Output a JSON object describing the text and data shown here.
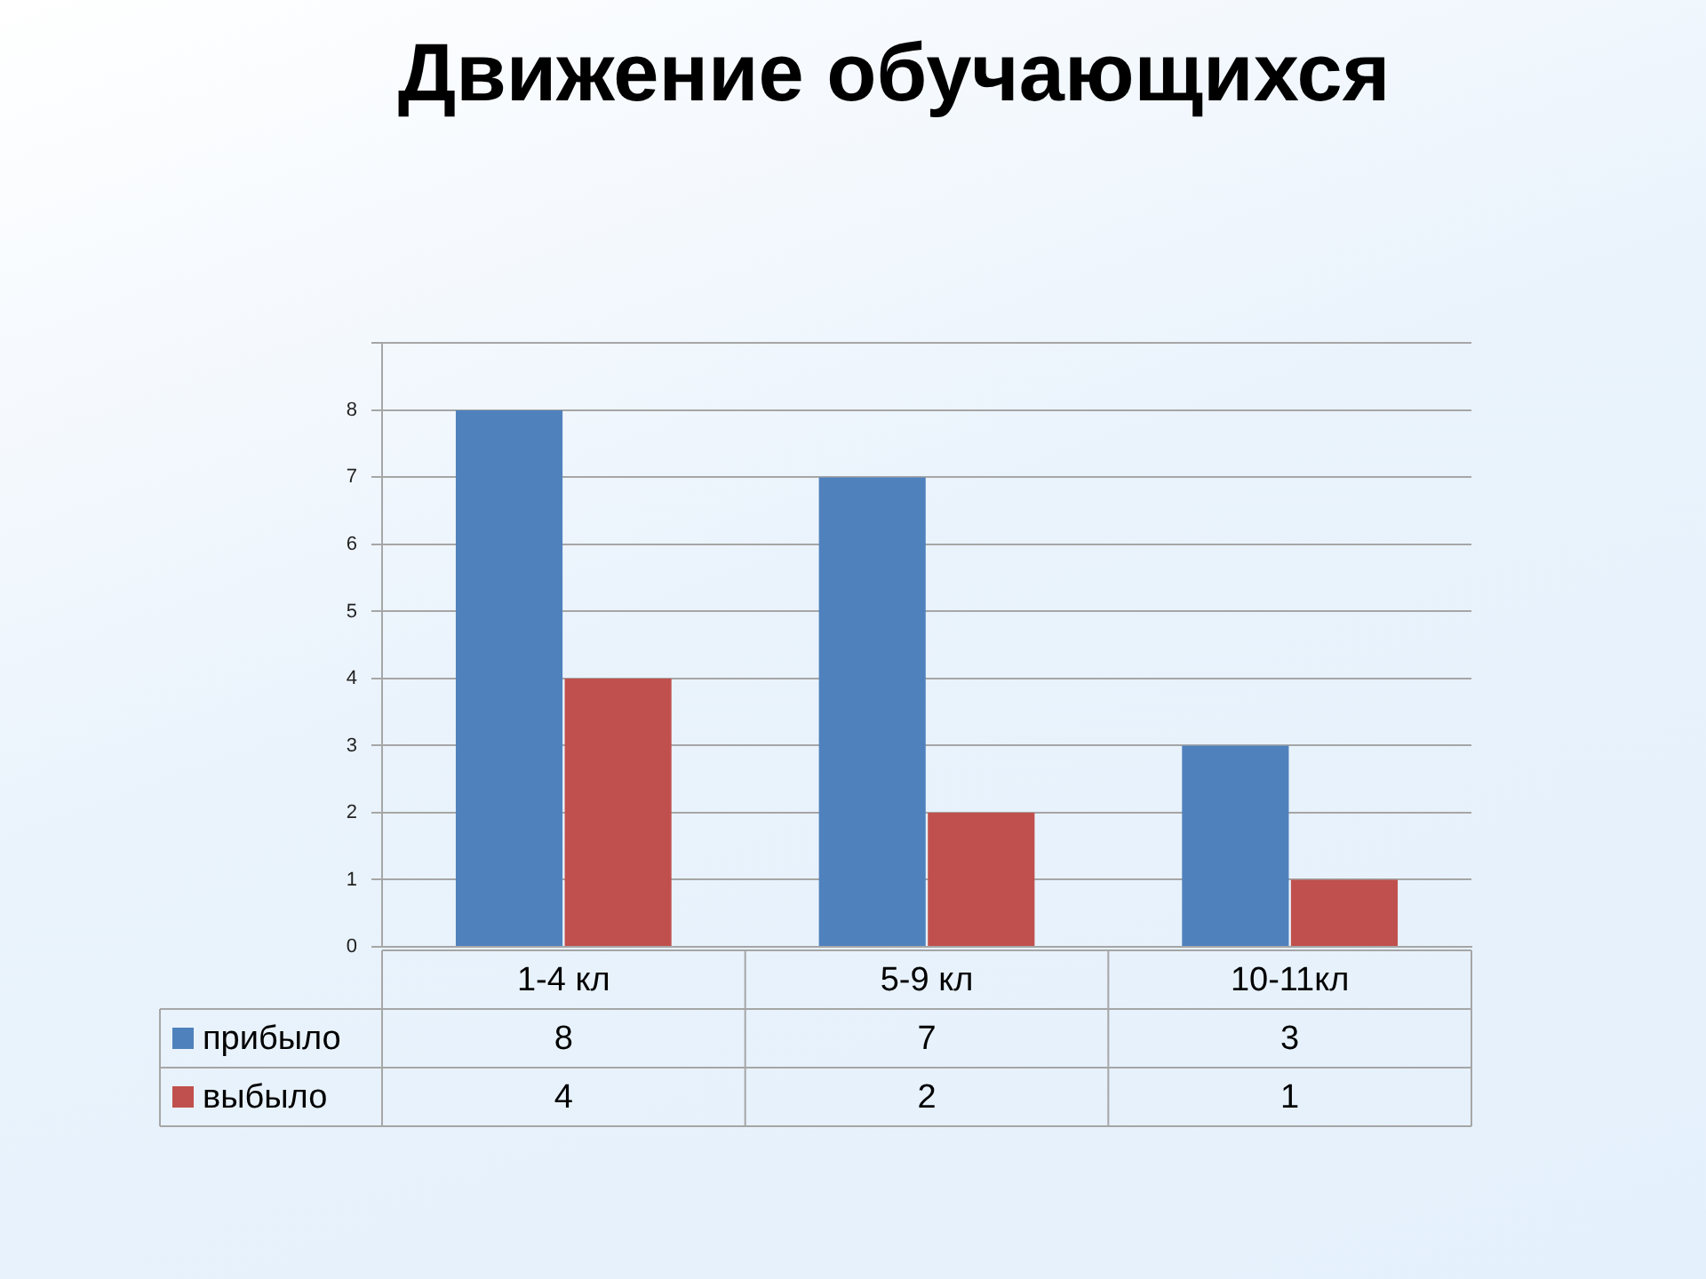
{
  "chart_data": {
    "type": "bar",
    "title": "Движение обучающихся",
    "categories": [
      "1-4 кл",
      "5-9 кл",
      "10-11кл"
    ],
    "series": [
      {
        "name": "прибыло",
        "color": "#4f81bd",
        "values": [
          8,
          7,
          3
        ]
      },
      {
        "name": "выбыло",
        "color": "#c0504d",
        "values": [
          4,
          2,
          1
        ]
      }
    ],
    "ylim": [
      0,
      9
    ],
    "yticks": [
      0,
      1,
      2,
      3,
      4,
      5,
      6,
      7,
      8,
      {
        "value": 9,
        "label": null
      }
    ],
    "grid": "y",
    "legend": "bottom",
    "data_labels": true
  }
}
